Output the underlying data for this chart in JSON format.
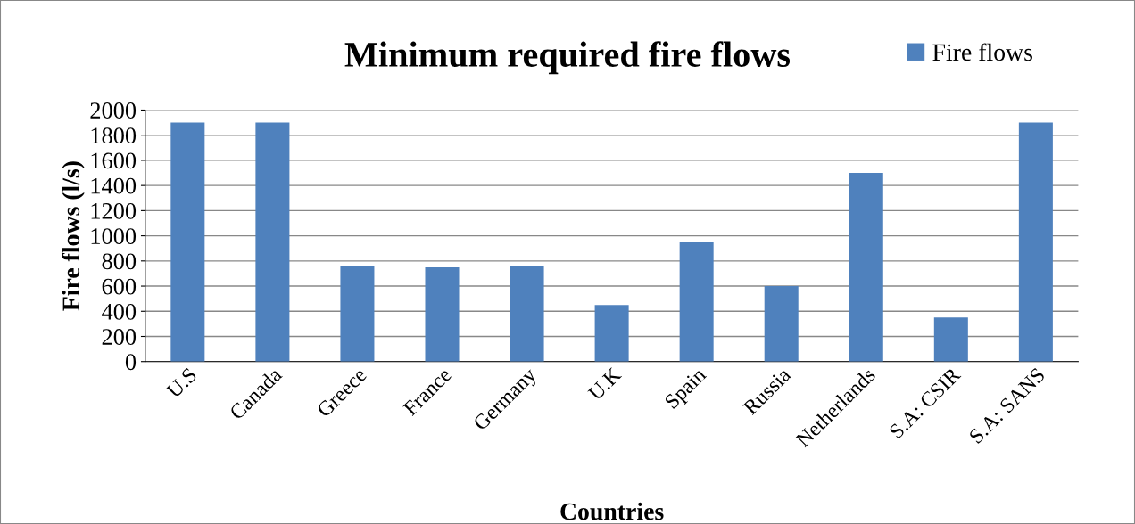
{
  "chart_data": {
    "type": "bar",
    "title": "Minimum required fire flows",
    "xlabel": "Countries",
    "ylabel": "Fire flows (l/s)",
    "categories": [
      "U.S",
      "Canada",
      "Greece",
      "France",
      "Germany",
      "U.K",
      "Spain",
      "Russia",
      "Netherlands",
      "S.A: CSIR",
      "S.A: SANS"
    ],
    "series": [
      {
        "name": "Fire flows",
        "color": "#4f81bd",
        "values": [
          1900,
          1900,
          760,
          750,
          760,
          450,
          950,
          600,
          1500,
          350,
          1900
        ]
      }
    ],
    "ylim": [
      0,
      2000
    ],
    "yticks": [
      0,
      200,
      400,
      600,
      800,
      1000,
      1200,
      1400,
      1600,
      1800,
      2000
    ],
    "grid": "y",
    "legend": "top right"
  }
}
